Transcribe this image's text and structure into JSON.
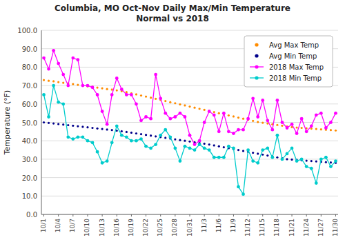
{
  "chart_data": {
    "type": "line",
    "title": "Columbia, MO Oct-Nov Daily Max/Min Temperature\nNormal vs 2018",
    "ylabel": "Temperature (°F)",
    "categories": [
      "10/1",
      null,
      null,
      "10/4",
      null,
      null,
      "10/7",
      null,
      null,
      "10/10",
      null,
      null,
      "10/13",
      null,
      null,
      "10/16",
      null,
      null,
      "10/19",
      null,
      null,
      "10/22",
      null,
      null,
      "10/25",
      null,
      null,
      "10/28",
      null,
      null,
      "10/31",
      null,
      null,
      "11/3",
      null,
      null,
      "11/6",
      null,
      null,
      "11/9",
      null,
      null,
      "11/12",
      null,
      null,
      "11/15",
      null,
      null,
      "11/18",
      null,
      null,
      "11/21",
      null,
      null,
      "11/24",
      null,
      null,
      "11/27",
      null,
      null,
      "11/30"
    ],
    "ylim": [
      0.0,
      100.0
    ],
    "yticks": [
      {
        "value": 0.0,
        "label": "0.0"
      },
      {
        "value": 10.0,
        "label": "10.0"
      },
      {
        "value": 20.0,
        "label": "20.0"
      },
      {
        "value": 30.0,
        "label": "30.0"
      },
      {
        "value": 40.0,
        "label": "40.0"
      },
      {
        "value": 50.0,
        "label": "50.0"
      },
      {
        "value": 60.0,
        "label": "60.0"
      },
      {
        "value": 70.0,
        "label": "70.0"
      },
      {
        "value": 80.0,
        "label": "80.0"
      },
      {
        "value": 90.0,
        "label": "90.0"
      },
      {
        "value": 100.0,
        "label": "100.0"
      }
    ],
    "grid": true,
    "legend": "upper right",
    "series": [
      {
        "name": "Avg Max Temp",
        "color": "#FF8C00",
        "marker": "o",
        "line_style": "none",
        "values": [
          73.0,
          72.6,
          72.3,
          71.9,
          71.5,
          71.1,
          70.8,
          70.4,
          70.0,
          69.6,
          69.3,
          68.9,
          68.5,
          68.1,
          67.8,
          67.4,
          67.0,
          66.4,
          65.8,
          65.2,
          64.6,
          64.0,
          63.4,
          62.8,
          62.2,
          61.6,
          61.0,
          60.4,
          59.8,
          59.2,
          58.6,
          58.0,
          57.4,
          56.8,
          56.2,
          55.6,
          55.0,
          54.4,
          53.8,
          53.2,
          52.6,
          52.0,
          51.4,
          50.8,
          50.2,
          49.8,
          49.4,
          49.0,
          48.6,
          48.2,
          47.8,
          47.4,
          47.2,
          47.0,
          46.8,
          46.6,
          46.4,
          46.2,
          46.0,
          45.8,
          45.6
        ]
      },
      {
        "name": "Avg Min Temp",
        "color": "#00008B",
        "marker": "o",
        "line_style": "none",
        "values": [
          50.0,
          49.7,
          49.4,
          49.1,
          48.8,
          48.5,
          48.2,
          47.9,
          47.6,
          47.3,
          47.0,
          46.7,
          46.4,
          46.1,
          45.8,
          45.5,
          45.2,
          44.8,
          44.4,
          44.0,
          43.6,
          43.2,
          42.8,
          42.4,
          42.0,
          41.6,
          41.2,
          40.8,
          40.4,
          40.0,
          39.6,
          39.2,
          38.8,
          38.4,
          38.0,
          37.5,
          37.0,
          36.5,
          36.0,
          35.5,
          35.0,
          34.5,
          34.0,
          33.5,
          33.0,
          32.5,
          32.0,
          31.5,
          31.0,
          30.5,
          30.0,
          29.8,
          29.6,
          29.4,
          29.2,
          29.0,
          28.8,
          28.6,
          28.4,
          28.2,
          28.0
        ]
      },
      {
        "name": "2018 Max Temp",
        "color": "#FF00FF",
        "marker": "o",
        "line_style": "solid",
        "values": [
          85,
          79,
          89,
          82,
          76,
          70,
          85,
          84,
          70,
          70,
          69,
          65,
          56,
          49,
          65,
          74,
          68,
          65,
          65,
          60,
          51,
          53,
          52,
          76,
          63,
          55,
          52,
          53,
          55,
          53,
          43,
          38,
          40,
          50,
          56,
          54,
          45,
          55,
          45,
          44,
          46,
          46,
          52,
          63,
          53,
          62,
          51,
          46,
          62,
          50,
          47,
          49,
          44,
          52,
          45,
          48,
          54,
          55,
          47,
          50,
          55
        ]
      },
      {
        "name": "2018 Min Temp",
        "color": "#00CCCC",
        "marker": "o",
        "line_style": "solid",
        "values": [
          65,
          53,
          70,
          61,
          60,
          42,
          41,
          42,
          42,
          40,
          39,
          34,
          28,
          29,
          39,
          48,
          43,
          42,
          40,
          40,
          41,
          37,
          36,
          38,
          43,
          46,
          42,
          36,
          29,
          37,
          36,
          35,
          38,
          36,
          35,
          31,
          31,
          31,
          37,
          36,
          15,
          11,
          35,
          29,
          28,
          35,
          36,
          31,
          43,
          30,
          33,
          36,
          29,
          30,
          26,
          25,
          17,
          30,
          31,
          26,
          29
        ]
      }
    ]
  }
}
